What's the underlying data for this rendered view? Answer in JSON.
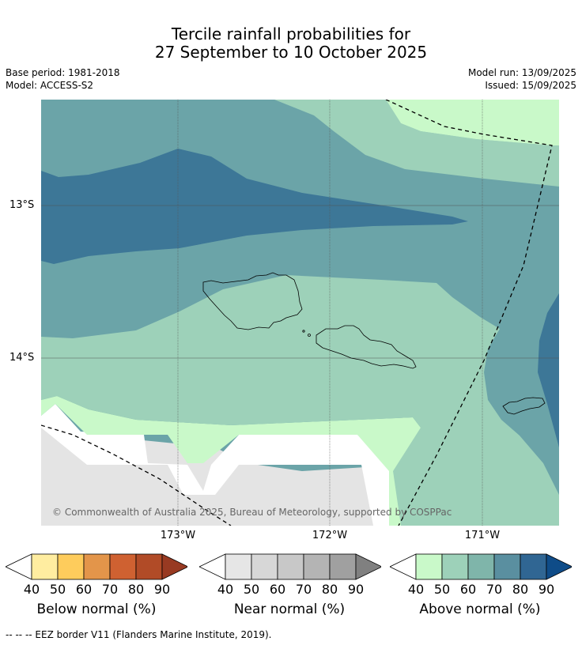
{
  "title_line1": "Tercile rainfall probabilities for",
  "title_line2": "27 September to 10 October 2025",
  "base_period": "Base period: 1981-2018",
  "model": "Model: ACCESS-S2",
  "model_run": "Model run: 13/09/2025",
  "issued": "Issued: 15/09/2025",
  "lat_labels": [
    "13°S",
    "14°S"
  ],
  "lon_labels": [
    "173°W",
    "172°W",
    "171°W"
  ],
  "copyright": "© Commonwealth of Australia 2025, Bureau of Meteorology, supported by COSPPac",
  "footer": "-- -- -- EEZ border V11 (Flanders Marine Institute, 2019).",
  "colorbars": [
    {
      "title": "Below normal (%)",
      "ticks": [
        "40",
        "50",
        "60",
        "70",
        "80",
        "90"
      ],
      "colors": [
        "#ffeda0",
        "#fecc5c",
        "#e3954a",
        "#cf6131",
        "#b14b27",
        "#983a22"
      ]
    },
    {
      "title": "Near normal (%)",
      "ticks": [
        "40",
        "50",
        "60",
        "70",
        "80",
        "90"
      ],
      "colors": [
        "#e6e6e6",
        "#d7d7d7",
        "#c8c8c8",
        "#b4b4b4",
        "#a0a0a0",
        "#808080"
      ]
    },
    {
      "title": "Above normal (%)",
      "ticks": [
        "40",
        "50",
        "60",
        "70",
        "80",
        "90"
      ],
      "colors": [
        "#c9f9c9",
        "#9dd1b9",
        "#7fb5aa",
        "#5a8fa0",
        "#306693",
        "#0f4c88"
      ]
    }
  ],
  "map_colors": {
    "above_40": "#c9f9c9",
    "above_50": "#9dd1b9",
    "above_60": "#6ba4a8",
    "above_70": "#3d7797",
    "near_40": "#e4e4e4",
    "white": "#ffffff"
  }
}
